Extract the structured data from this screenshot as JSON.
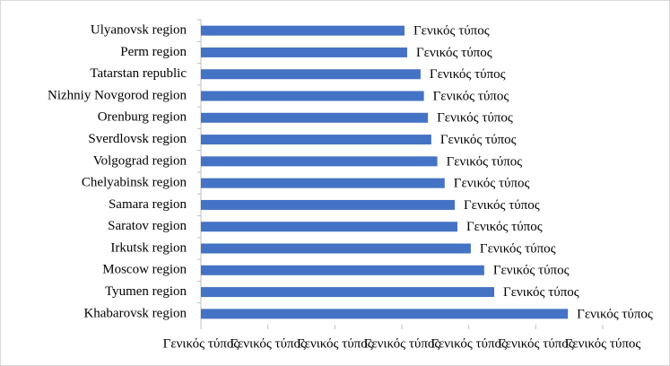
{
  "chart_data": {
    "type": "hbar",
    "categories": [
      "Ulyanovsk region",
      "Perm region",
      "Tatarstan republic",
      "Nizhniy Novgorod region",
      "Orenburg region",
      "Sverdlovsk region",
      "Volgograd region",
      "Chelyabinsk region",
      "Samara region",
      "Saratov region",
      "Irkutsk region",
      "Moscow region",
      "Tyumen region",
      "Khabarovsk region"
    ],
    "values": [
      3.04,
      3.08,
      3.28,
      3.33,
      3.39,
      3.44,
      3.53,
      3.64,
      3.79,
      3.83,
      4.03,
      4.23,
      4.38,
      5.48
    ],
    "value_labels": [
      "Γενικός τύπος",
      "Γενικός τύπος",
      "Γενικός τύπος",
      "Γενικός τύπος",
      "Γενικός τύπος",
      "Γενικός τύπος",
      "Γενικός τύπος",
      "Γενικός τύπος",
      "Γενικός τύπος",
      "Γενικός τύπος",
      "Γενικός τύπος",
      "Γενικός τύπος",
      "Γενικός τύπος",
      "Γενικός τύπος"
    ],
    "color": "#4472c4",
    "xlim": [
      0,
      6
    ],
    "xticks": [
      {
        "value": 0,
        "label": "Γενικός τύπος"
      },
      {
        "value": 1,
        "label": "Γενικός τύπος"
      },
      {
        "value": 2,
        "label": "Γενικός τύπος"
      },
      {
        "value": 3,
        "label": "Γενικός τύπος"
      },
      {
        "value": 4,
        "label": "Γενικός τύπος"
      },
      {
        "value": 5,
        "label": "Γενικός τύπος"
      },
      {
        "value": 6,
        "label": "Γενικός τύπος"
      }
    ],
    "grid": false
  }
}
